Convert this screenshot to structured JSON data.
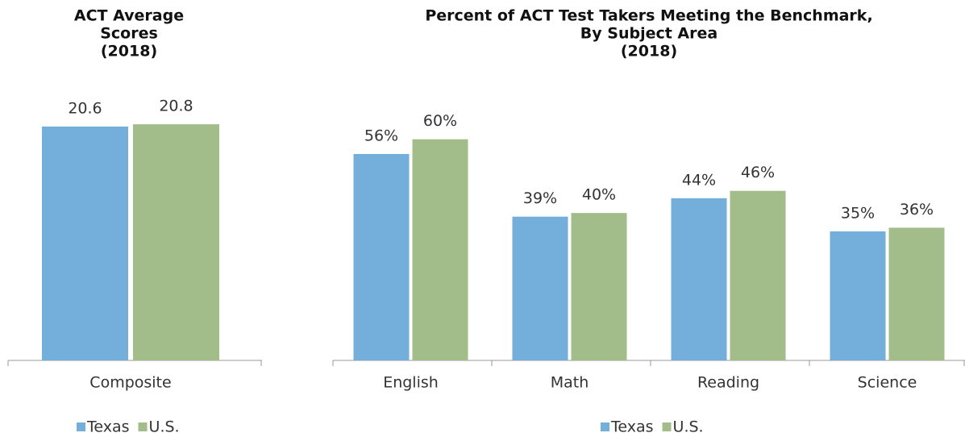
{
  "chart_data": [
    {
      "type": "bar",
      "title": [
        "ACT Average",
        "Scores",
        "(2018)"
      ],
      "categories": [
        "Composite"
      ],
      "series": [
        {
          "name": "Texas",
          "color": "#74aedb",
          "values": [
            20.6
          ]
        },
        {
          "name": "U.S.",
          "color": "#a2bc8a",
          "values": [
            20.8
          ]
        }
      ],
      "ylim": [
        0,
        25
      ],
      "legend": "bottom"
    },
    {
      "type": "bar",
      "title": [
        "Percent of ACT Test Takers Meeting the Benchmark,",
        "By Subject Area",
        "(2018)"
      ],
      "categories": [
        "English",
        "Math",
        "Reading",
        "Science"
      ],
      "series": [
        {
          "name": "Texas",
          "color": "#74aedb",
          "values": [
            56,
            39,
            44,
            35
          ],
          "value_labels": [
            "56%",
            "39%",
            "44%",
            "35%"
          ]
        },
        {
          "name": "U.S.",
          "color": "#a2bc8a",
          "values": [
            60,
            40,
            46,
            36
          ],
          "value_labels": [
            "60%",
            "40%",
            "46%",
            "36%"
          ]
        }
      ],
      "ylim": [
        0,
        70
      ],
      "legend": "bottom"
    }
  ]
}
